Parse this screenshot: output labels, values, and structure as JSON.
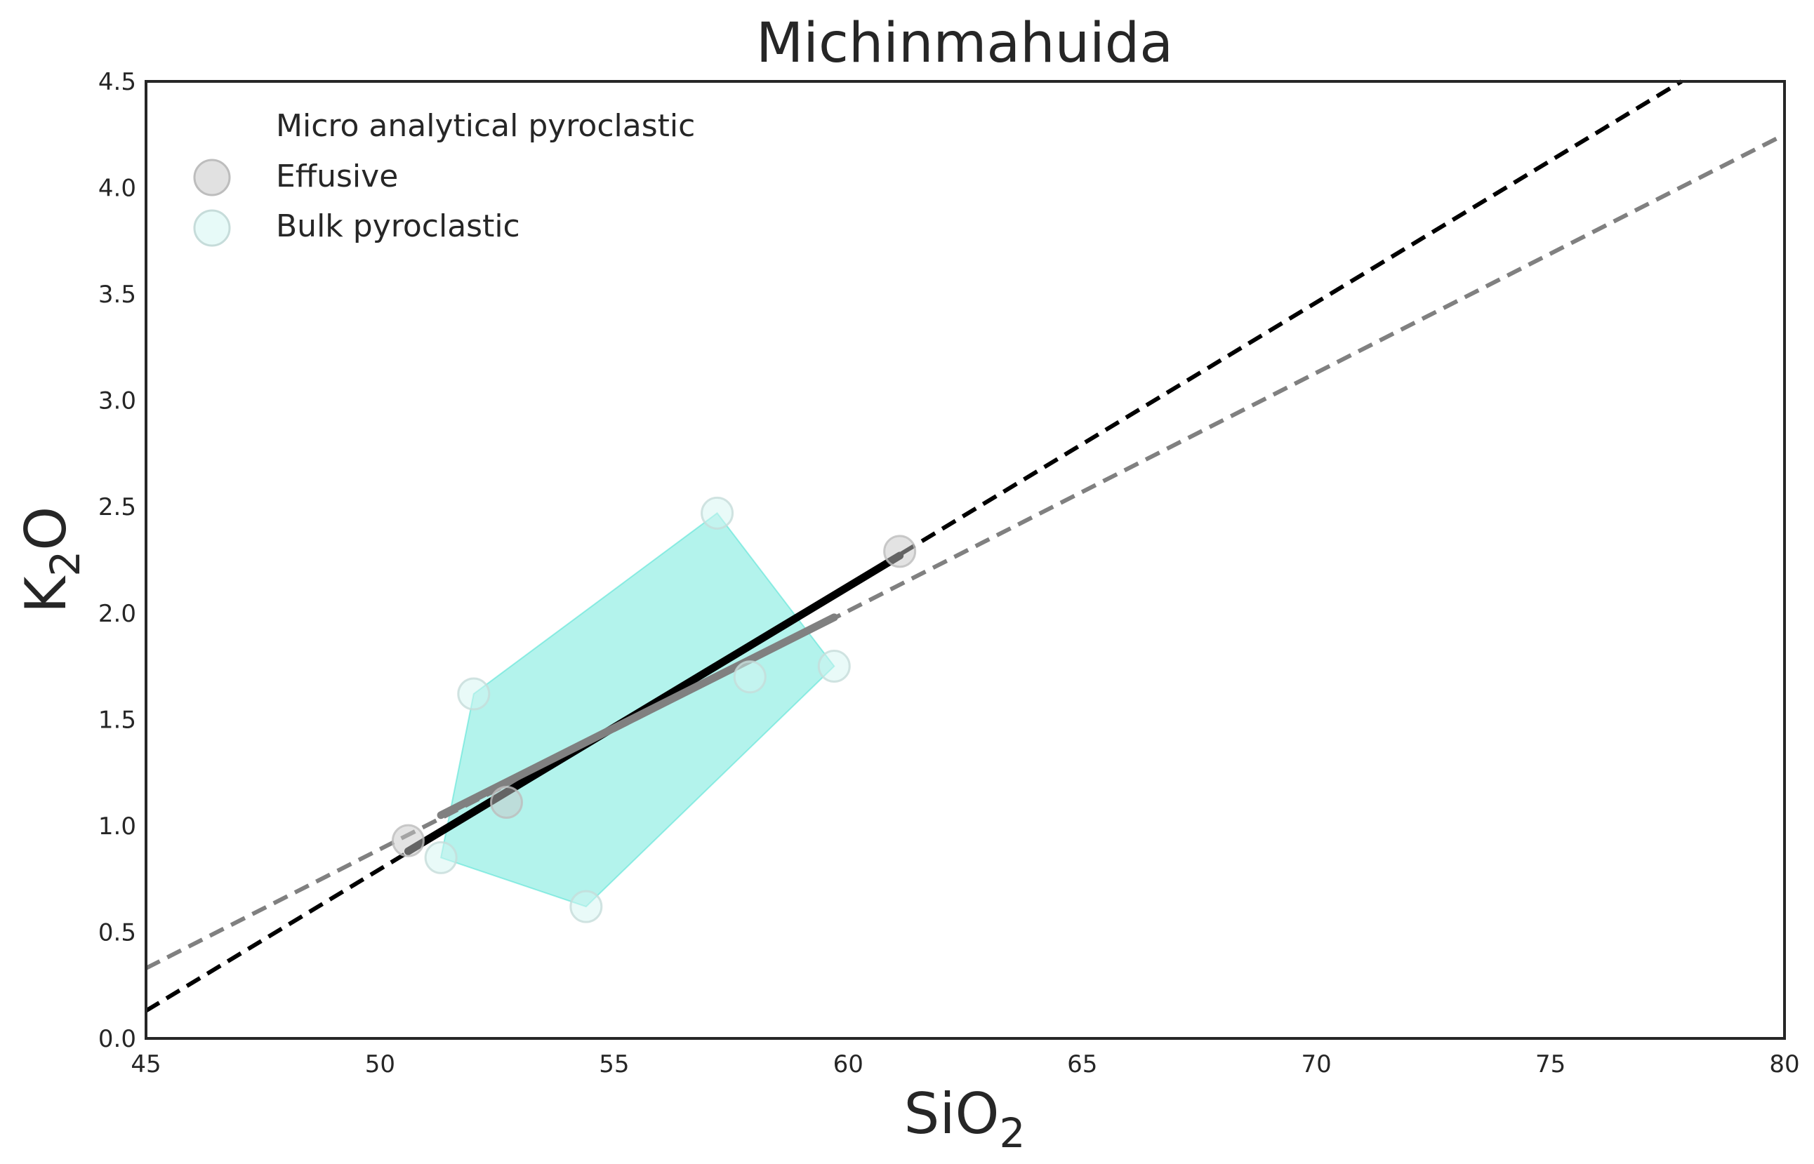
{
  "chart_data": {
    "type": "scatter",
    "title": "Michinmahuida",
    "xlabel": {
      "base": "SiO",
      "sub": "2"
    },
    "ylabel": {
      "base": "K",
      "sub": "2",
      "tail": "O"
    },
    "xlim": [
      45,
      80
    ],
    "ylim": [
      0,
      4.5
    ],
    "xticks": [
      45,
      50,
      55,
      60,
      65,
      70,
      75,
      80
    ],
    "yticks": [
      0.0,
      0.5,
      1.0,
      1.5,
      2.0,
      2.5,
      3.0,
      3.5,
      4.0,
      4.5
    ],
    "xtick_labels": [
      "45",
      "50",
      "55",
      "60",
      "65",
      "70",
      "75",
      "80"
    ],
    "ytick_labels": [
      "0.0",
      "0.5",
      "1.0",
      "1.5",
      "2.0",
      "2.5",
      "3.0",
      "3.5",
      "4.0",
      "4.5"
    ],
    "grid": false,
    "legend_position": "top-left",
    "legend": [
      {
        "label": "Micro analytical pyroclastic",
        "marker": "none"
      },
      {
        "label": "Effusive",
        "marker": "circle",
        "color": "#c8c8c8"
      },
      {
        "label": "Bulk pyroclastic",
        "marker": "circle",
        "color": "#d4f6f2"
      }
    ],
    "series": [
      {
        "name": "Effusive",
        "color": "#c8c8c8",
        "points": [
          {
            "x": 50.6,
            "y": 0.93
          },
          {
            "x": 52.7,
            "y": 1.11
          },
          {
            "x": 61.1,
            "y": 2.29
          }
        ]
      },
      {
        "name": "Bulk pyroclastic",
        "color": "#d4f6f2",
        "points": [
          {
            "x": 51.3,
            "y": 0.85
          },
          {
            "x": 52.0,
            "y": 1.62
          },
          {
            "x": 54.4,
            "y": 0.62
          },
          {
            "x": 57.2,
            "y": 2.47
          },
          {
            "x": 57.9,
            "y": 1.7
          },
          {
            "x": 59.7,
            "y": 1.75
          }
        ]
      }
    ],
    "hull": {
      "color": "#40e0d0",
      "opacity": 0.4,
      "points": [
        {
          "x": 51.3,
          "y": 0.85
        },
        {
          "x": 54.4,
          "y": 0.62
        },
        {
          "x": 59.7,
          "y": 1.75
        },
        {
          "x": 57.2,
          "y": 2.47
        },
        {
          "x": 52.0,
          "y": 1.62
        }
      ]
    },
    "lines": [
      {
        "from": [
          45,
          0.13
        ],
        "to": [
          77.8,
          4.5
        ],
        "color": "#000000",
        "style": "dashed"
      },
      {
        "from": [
          45,
          0.33
        ],
        "to": [
          80,
          4.25
        ],
        "color": "#808080",
        "style": "dashed"
      },
      {
        "from": [
          50.6,
          0.88
        ],
        "to": [
          61.1,
          2.27
        ],
        "color": "#000000",
        "style": "solid"
      },
      {
        "from": [
          51.3,
          1.05
        ],
        "to": [
          59.7,
          1.98
        ],
        "color": "#808080",
        "style": "solid"
      }
    ]
  }
}
